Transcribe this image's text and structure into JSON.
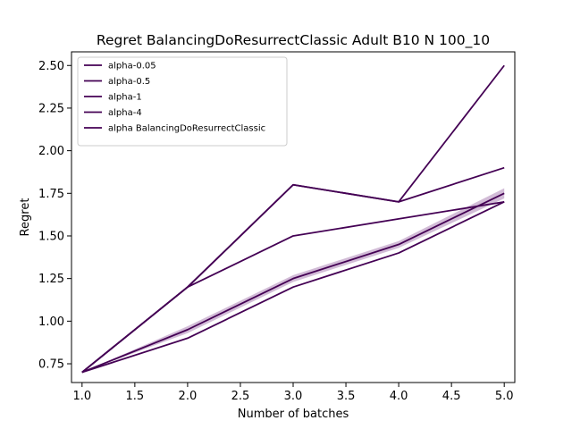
{
  "chart_data": {
    "type": "line",
    "title": "Regret BalancingDoResurrectClassic Adult B10 N 100_10",
    "xlabel": "Number of batches",
    "ylabel": "Regret",
    "xlim": [
      0.9,
      5.1
    ],
    "ylim": [
      0.64,
      2.58
    ],
    "x_ticks": [
      1.0,
      1.5,
      2.0,
      2.5,
      3.0,
      3.5,
      4.0,
      4.5,
      5.0
    ],
    "y_ticks": [
      0.75,
      1.0,
      1.25,
      1.5,
      1.75,
      2.0,
      2.25,
      2.5
    ],
    "grid": false,
    "legend_position": "top-left",
    "x": [
      1,
      2,
      3,
      4,
      5
    ],
    "series": [
      {
        "name": "alpha-0.05",
        "color": "#440154",
        "values": [
          0.7,
          1.2,
          1.8,
          1.7,
          2.5
        ]
      },
      {
        "name": "alpha-0.5",
        "color": "#440154",
        "values": [
          0.7,
          1.2,
          1.8,
          1.7,
          1.9
        ]
      },
      {
        "name": "alpha-1",
        "color": "#440154",
        "values": [
          0.7,
          1.2,
          1.5,
          1.6,
          1.7
        ]
      },
      {
        "name": "alpha-4",
        "color": "#440154",
        "values": [
          0.7,
          0.9,
          1.2,
          1.4,
          1.7
        ]
      },
      {
        "name": "alpha BalancingDoResurrectClassic",
        "color": "#440154",
        "values": [
          0.7,
          0.95,
          1.25,
          1.45,
          1.75
        ],
        "band_lower": [
          0.7,
          0.93,
          1.23,
          1.43,
          1.72
        ],
        "band_upper": [
          0.7,
          0.97,
          1.27,
          1.47,
          1.78
        ],
        "band_color": "#c3a5c9"
      }
    ]
  }
}
